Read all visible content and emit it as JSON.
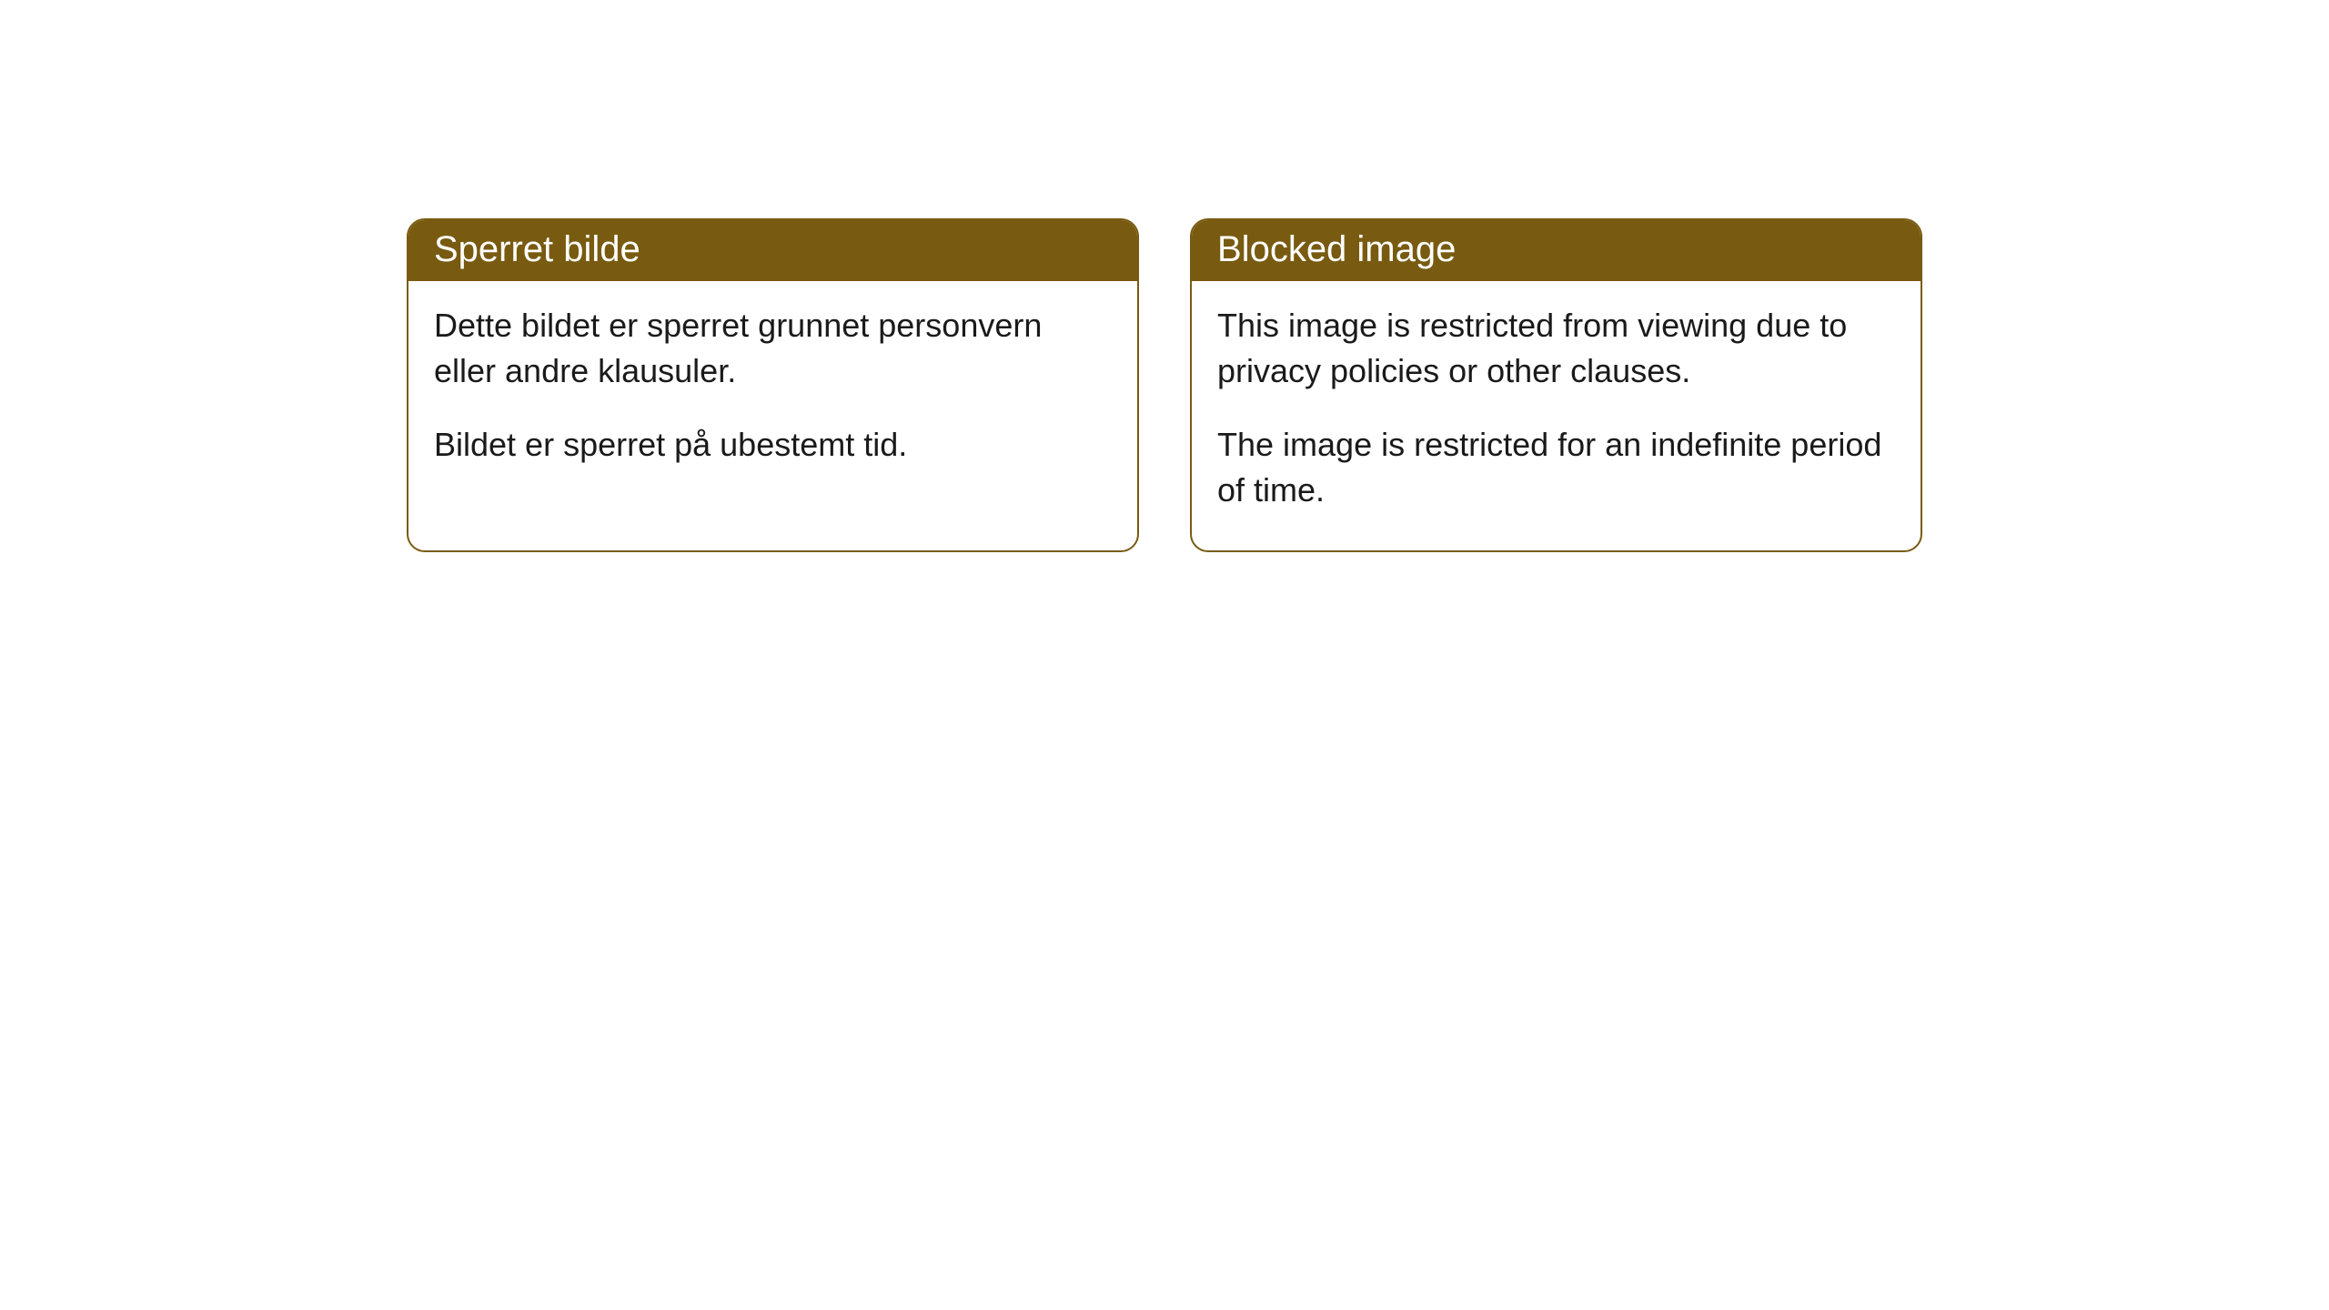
{
  "cards": [
    {
      "title": "Sperret bilde",
      "paragraph1": "Dette bildet er sperret grunnet personvern eller andre klausuler.",
      "paragraph2": "Bildet er sperret på ubestemt tid."
    },
    {
      "title": "Blocked image",
      "paragraph1": "This image is restricted from viewing due to privacy policies or other clauses.",
      "paragraph2": "The image is restricted for an indefinite period of time."
    }
  ],
  "styling": {
    "header_bg_color": "#785b11",
    "header_text_color": "#ffffff",
    "border_color": "#785b11",
    "body_text_color": "#1a1a1a",
    "background_color": "#ffffff",
    "border_radius": 20,
    "title_fontsize": 40,
    "body_fontsize": 36
  }
}
